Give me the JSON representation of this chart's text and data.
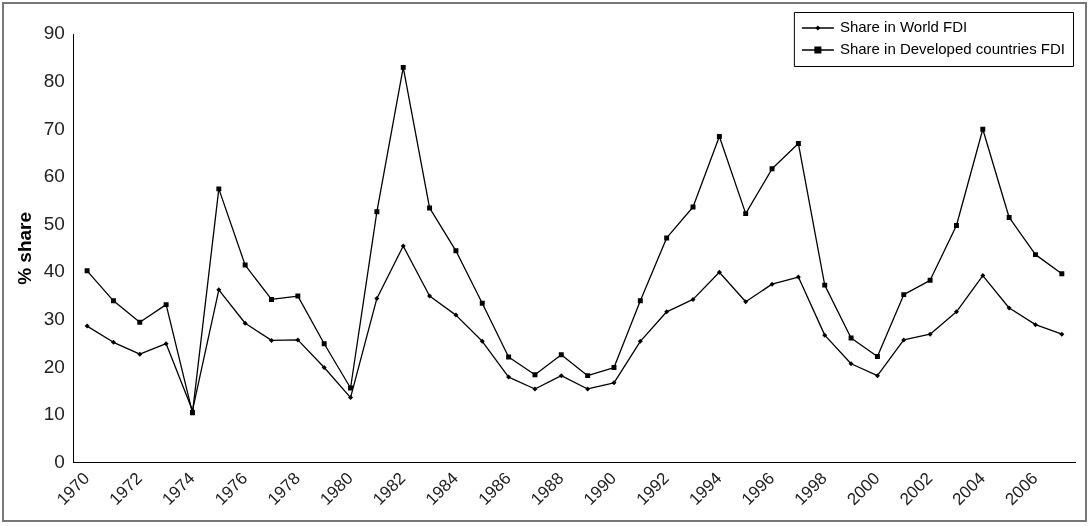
{
  "chart_data": {
    "type": "line",
    "ylabel": "% share",
    "categories": [
      "1970",
      null,
      "1972",
      null,
      "1974",
      null,
      "1976",
      null,
      "1978",
      null,
      "1980",
      null,
      "1982",
      null,
      "1984",
      null,
      "1986",
      null,
      "1988",
      null,
      "1990",
      null,
      "1992",
      null,
      "1994",
      null,
      "1996",
      null,
      "1998",
      null,
      "2000",
      null,
      "2002",
      null,
      "2004",
      null,
      "2006",
      null
    ],
    "series": [
      {
        "name": "Share in World FDI",
        "color": "#000000",
        "marker": "diamond",
        "values": [
          28.7,
          25.3,
          22.8,
          25,
          11,
          36.3,
          29.3,
          25.7,
          25.8,
          20,
          13.7,
          34.5,
          45.5,
          35,
          31,
          25.5,
          18,
          15.5,
          18.3,
          15.5,
          16.8,
          25.5,
          31.7,
          34.3,
          40,
          33.8,
          37.5,
          39,
          26.8,
          20.8,
          18.3,
          25.8,
          27,
          31.7,
          39.3,
          32.5,
          29,
          27
        ]
      },
      {
        "name": "Share in Developed countries FDI",
        "color": "#000000",
        "marker": "square",
        "values": [
          40.3,
          34,
          29.5,
          33.2,
          10.5,
          57.5,
          41.5,
          34.3,
          35,
          25,
          15.7,
          52.7,
          83,
          53.5,
          44.5,
          33.5,
          22.2,
          18.5,
          22.7,
          18.3,
          20,
          34,
          47.2,
          53.7,
          68.5,
          52.3,
          61.7,
          67,
          37.3,
          26.2,
          22.3,
          35.3,
          38.3,
          49.8,
          70,
          51.5,
          43.7,
          39.7
        ]
      }
    ],
    "ylim": [
      0,
      90
    ],
    "yticks": [
      0,
      10,
      20,
      30,
      40,
      50,
      60,
      70,
      80,
      90
    ],
    "grid": false,
    "legend": "top right",
    "line_style": "solid"
  }
}
